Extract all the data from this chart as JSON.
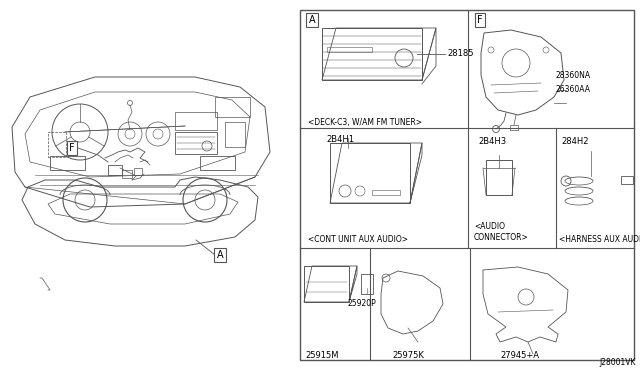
{
  "bg_color": "#ffffff",
  "line_color": "#555555",
  "text_color": "#000000",
  "diagram_code": "J28001VK",
  "right_grid": {
    "cell_A_label": "A",
    "cell_A_part": "28185",
    "cell_A_desc": "<DECK-C3, W/AM FM TUNER>",
    "cell_F_label": "F",
    "cell_F_part1": "28360NA",
    "cell_F_part2": "26360AA",
    "cell_mid_left_part": "2B4H1",
    "cell_mid_left_desc": "<CONT UNIT AUX AUDIO>",
    "cell_mid_center_part": "2B4H3",
    "cell_mid_center_desc": "<AUDIO\nCONNECTOR>",
    "cell_mid_right_part": "284H2",
    "cell_mid_right_desc": "<HARNESS AUX AUDIO>",
    "cell_bot_left_part1": "25915M",
    "cell_bot_left_part2": "25920P",
    "cell_bot_center_part": "25975K",
    "cell_bot_right_part": "27945+A"
  },
  "part_fontsize": 6.0,
  "desc_fontsize": 5.5,
  "label_fontsize": 7.0
}
